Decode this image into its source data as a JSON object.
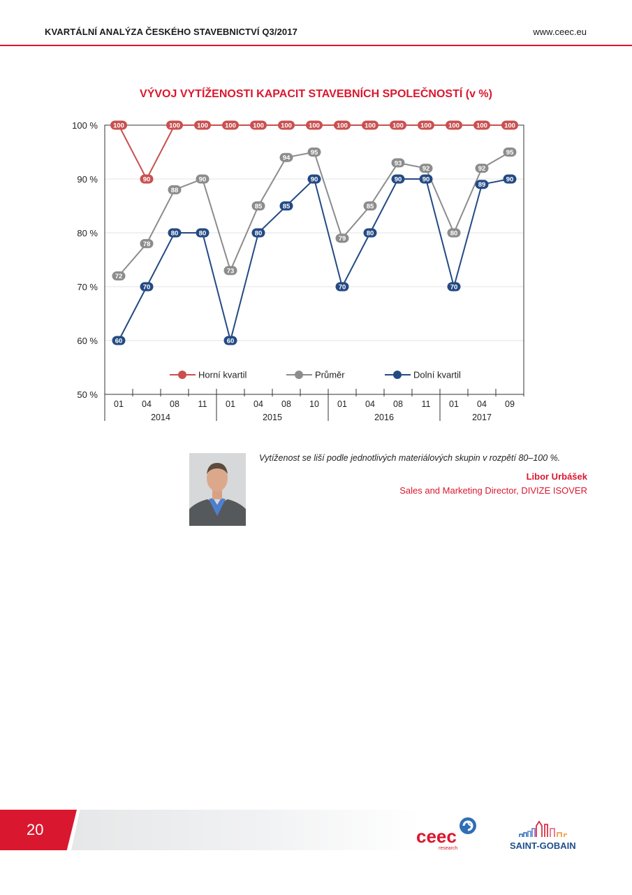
{
  "header": {
    "title": "KVARTÁLNÍ ANALÝZA ČESKÉHO STAVEBNICTVÍ Q3/2017",
    "url": "www.ceec.eu"
  },
  "chart_data": {
    "type": "line",
    "title": "VÝVOJ VYTÍŽENOSTI KAPACIT STAVEBNÍCH SPOLEČNOSTÍ (v %)",
    "categories": [
      "01",
      "04",
      "08",
      "11",
      "01",
      "04",
      "08",
      "10",
      "01",
      "04",
      "08",
      "11",
      "01",
      "04",
      "09"
    ],
    "year_groups": [
      {
        "label": "2014",
        "count": 4
      },
      {
        "label": "2015",
        "count": 4
      },
      {
        "label": "2016",
        "count": 4
      },
      {
        "label": "2017",
        "count": 3
      }
    ],
    "ylim": [
      50,
      100
    ],
    "yticks": [
      50,
      60,
      70,
      80,
      90,
      100
    ],
    "ytick_labels": [
      "50 %",
      "60 %",
      "70 %",
      "80 %",
      "90 %",
      "100 %"
    ],
    "grid": true,
    "legend_position": "bottom-inside",
    "series": [
      {
        "name": "Horní kvartil",
        "color": "#c9504f",
        "values": [
          100,
          90,
          100,
          100,
          100,
          100,
          100,
          100,
          100,
          100,
          100,
          100,
          100,
          100,
          100
        ]
      },
      {
        "name": "Průměr",
        "color": "#8c8c8c",
        "values": [
          72,
          78,
          88,
          90,
          73,
          85,
          94,
          95,
          79,
          85,
          93,
          92,
          80,
          92,
          95
        ]
      },
      {
        "name": "Dolní kvartil",
        "color": "#244a83",
        "values": [
          60,
          70,
          80,
          80,
          60,
          80,
          85,
          90,
          70,
          80,
          90,
          90,
          70,
          89,
          90
        ]
      }
    ]
  },
  "quote": {
    "text": "Vytíženost se liší podle jednotlivých materiálových skupin v rozpětí 80–100 %.",
    "author": "Libor Urbášek",
    "role": "Sales and Marketing Director, DIVIZE ISOVER"
  },
  "footer": {
    "page_number": "20",
    "ceec_logo_text": "ceec",
    "ceec_logo_sub": "research",
    "sg_logo_text": "SAINT-GOBAIN"
  },
  "colors": {
    "accent": "#d9182f"
  }
}
